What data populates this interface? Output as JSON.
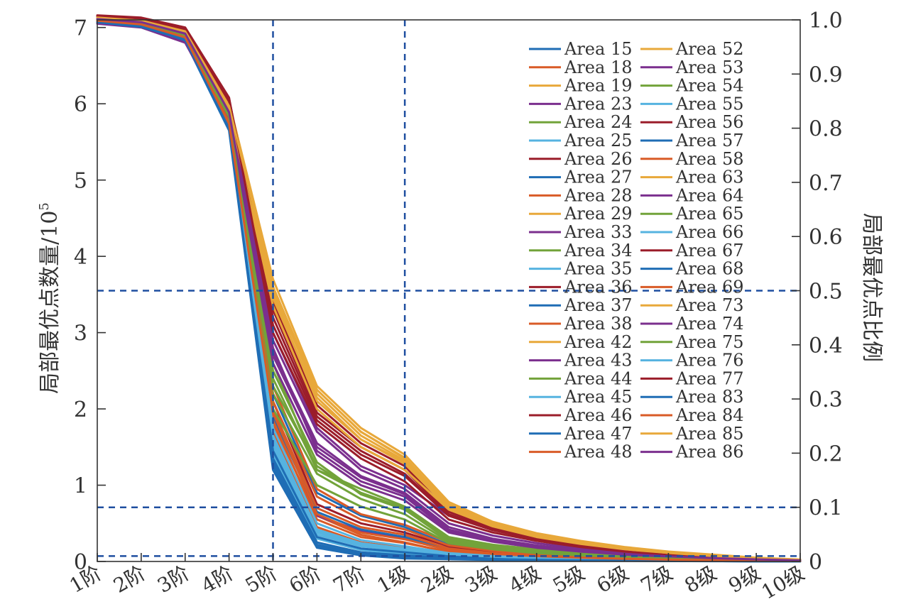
{
  "chart_data": {
    "type": "line",
    "title": "",
    "xlabel": "",
    "ylabel": "局部最优点数量/10",
    "ylabel_superscript": "5",
    "y2label": "局部最优点比例",
    "categories": [
      "1阶",
      "2阶",
      "3阶",
      "4阶",
      "5阶",
      "6阶",
      "7阶",
      "1级",
      "2级",
      "3级",
      "4级",
      "5级",
      "6级",
      "7级",
      "8级",
      "9级",
      "10级"
    ],
    "ylim": [
      0,
      7.1
    ],
    "yticks": [
      0,
      1,
      2,
      3,
      4,
      5,
      6,
      7
    ],
    "y2lim": [
      0,
      1.0
    ],
    "y2ticks": [
      "0",
      "0.1",
      "0.2",
      "0.3",
      "0.4",
      "0.5",
      "0.6",
      "0.7",
      "0.8",
      "0.9",
      "1.0"
    ],
    "grid": false,
    "legend_position": "top-right",
    "reference_lines": {
      "vertical_categories": [
        "5阶",
        "1级"
      ],
      "horizontal_right_axis": [
        0.01,
        0.1,
        0.5
      ]
    },
    "series_colors": [
      "#1f6db5",
      "#d95b27",
      "#e8a83a",
      "#7b2f8e",
      "#72a33a",
      "#56b3e0",
      "#9b1d2a"
    ],
    "series": [
      {
        "name": "Area 15",
        "values": [
          7.1,
          7.05,
          6.82,
          5.65,
          1.2,
          0.18,
          0.08,
          0.04,
          0.03,
          0.02,
          0.015,
          0.01,
          0.008,
          0.006,
          0.004,
          0.003,
          0.002
        ]
      },
      {
        "name": "Area 18",
        "values": [
          7.08,
          7.02,
          6.86,
          5.7,
          1.8,
          0.6,
          0.35,
          0.25,
          0.12,
          0.08,
          0.06,
          0.04,
          0.03,
          0.02,
          0.015,
          0.01,
          0.005
        ]
      },
      {
        "name": "Area 19",
        "values": [
          7.1,
          7.06,
          6.9,
          5.8,
          3.6,
          2.25,
          1.7,
          1.35,
          0.75,
          0.5,
          0.35,
          0.25,
          0.17,
          0.11,
          0.07,
          0.04,
          0.02
        ]
      },
      {
        "name": "Area 23",
        "values": [
          7.05,
          7.0,
          6.8,
          5.75,
          2.0,
          0.6,
          0.4,
          0.3,
          0.18,
          0.12,
          0.09,
          0.06,
          0.04,
          0.03,
          0.02,
          0.01,
          0.005
        ]
      },
      {
        "name": "Area 24",
        "values": [
          7.12,
          7.07,
          6.92,
          5.85,
          2.6,
          1.2,
          0.9,
          0.7,
          0.3,
          0.2,
          0.14,
          0.1,
          0.07,
          0.05,
          0.03,
          0.02,
          0.01
        ]
      },
      {
        "name": "Area 25",
        "values": [
          7.09,
          7.03,
          6.88,
          5.7,
          1.4,
          0.3,
          0.15,
          0.1,
          0.06,
          0.04,
          0.03,
          0.02,
          0.015,
          0.01,
          0.007,
          0.004,
          0.002
        ]
      },
      {
        "name": "Area 26",
        "values": [
          7.13,
          7.1,
          6.95,
          6.0,
          3.4,
          2.05,
          1.55,
          1.25,
          0.65,
          0.45,
          0.32,
          0.23,
          0.15,
          0.1,
          0.06,
          0.04,
          0.02
        ]
      },
      {
        "name": "Area 27",
        "values": [
          7.07,
          7.01,
          6.84,
          5.68,
          2.2,
          0.9,
          0.6,
          0.45,
          0.22,
          0.14,
          0.1,
          0.07,
          0.05,
          0.035,
          0.025,
          0.015,
          0.008
        ]
      },
      {
        "name": "Area 28",
        "values": [
          7.1,
          7.05,
          6.87,
          5.72,
          1.7,
          0.45,
          0.25,
          0.18,
          0.1,
          0.07,
          0.05,
          0.035,
          0.025,
          0.018,
          0.012,
          0.008,
          0.004
        ]
      },
      {
        "name": "Area 29",
        "values": [
          7.14,
          7.1,
          6.97,
          6.02,
          3.7,
          2.3,
          1.75,
          1.4,
          0.78,
          0.52,
          0.37,
          0.27,
          0.19,
          0.13,
          0.09,
          0.05,
          0.025
        ]
      },
      {
        "name": "Area 33",
        "values": [
          7.11,
          7.06,
          6.9,
          5.9,
          3.0,
          1.75,
          1.25,
          1.0,
          0.6,
          0.42,
          0.3,
          0.21,
          0.14,
          0.09,
          0.06,
          0.04,
          0.02
        ]
      },
      {
        "name": "Area 34",
        "values": [
          7.1,
          7.05,
          6.89,
          5.85,
          2.4,
          1.2,
          0.95,
          0.72,
          0.32,
          0.22,
          0.16,
          0.11,
          0.08,
          0.05,
          0.035,
          0.02,
          0.01
        ]
      },
      {
        "name": "Area 35",
        "values": [
          7.08,
          7.03,
          6.85,
          5.7,
          1.5,
          0.35,
          0.2,
          0.14,
          0.08,
          0.05,
          0.04,
          0.03,
          0.02,
          0.014,
          0.009,
          0.005,
          0.003
        ]
      },
      {
        "name": "Area 36",
        "values": [
          7.12,
          7.08,
          6.93,
          5.9,
          2.1,
          0.75,
          0.5,
          0.38,
          0.2,
          0.13,
          0.09,
          0.06,
          0.045,
          0.03,
          0.02,
          0.012,
          0.006
        ]
      },
      {
        "name": "Area 37",
        "values": [
          7.09,
          7.04,
          6.87,
          5.75,
          1.9,
          0.65,
          0.42,
          0.32,
          0.16,
          0.1,
          0.07,
          0.05,
          0.035,
          0.025,
          0.016,
          0.01,
          0.005
        ]
      },
      {
        "name": "Area 38",
        "values": [
          7.1,
          7.05,
          6.88,
          5.78,
          2.3,
          0.95,
          0.62,
          0.48,
          0.25,
          0.16,
          0.11,
          0.08,
          0.055,
          0.04,
          0.025,
          0.015,
          0.008
        ]
      },
      {
        "name": "Area 42",
        "values": [
          7.13,
          7.09,
          6.95,
          5.98,
          3.55,
          2.2,
          1.65,
          1.32,
          0.72,
          0.48,
          0.34,
          0.24,
          0.16,
          0.11,
          0.07,
          0.045,
          0.022
        ]
      },
      {
        "name": "Area 43",
        "values": [
          7.1,
          7.06,
          6.91,
          5.88,
          2.8,
          1.45,
          1.05,
          0.85,
          0.4,
          0.27,
          0.19,
          0.13,
          0.09,
          0.06,
          0.04,
          0.025,
          0.012
        ]
      },
      {
        "name": "Area 44",
        "values": [
          7.11,
          7.07,
          6.92,
          5.86,
          2.5,
          1.3,
          0.88,
          0.68,
          0.28,
          0.18,
          0.13,
          0.09,
          0.06,
          0.04,
          0.028,
          0.017,
          0.008
        ]
      },
      {
        "name": "Area 45",
        "values": [
          7.09,
          7.04,
          6.86,
          5.72,
          1.6,
          0.4,
          0.22,
          0.16,
          0.09,
          0.06,
          0.045,
          0.03,
          0.022,
          0.015,
          0.01,
          0.006,
          0.003
        ]
      },
      {
        "name": "Area 46",
        "values": [
          7.15,
          7.12,
          6.98,
          6.05,
          3.3,
          1.95,
          1.5,
          1.2,
          0.62,
          0.43,
          0.31,
          0.22,
          0.15,
          0.1,
          0.065,
          0.04,
          0.02
        ]
      },
      {
        "name": "Area 47",
        "values": [
          7.07,
          7.02,
          6.84,
          5.68,
          1.35,
          0.25,
          0.12,
          0.08,
          0.05,
          0.035,
          0.025,
          0.018,
          0.013,
          0.009,
          0.006,
          0.004,
          0.002
        ]
      },
      {
        "name": "Area 48",
        "values": [
          7.1,
          7.05,
          6.87,
          5.74,
          2.0,
          0.7,
          0.45,
          0.35,
          0.17,
          0.11,
          0.08,
          0.055,
          0.04,
          0.028,
          0.018,
          0.011,
          0.006
        ]
      },
      {
        "name": "Area 52",
        "values": [
          7.12,
          7.08,
          6.93,
          5.95,
          3.45,
          2.15,
          1.6,
          1.28,
          0.7,
          0.47,
          0.33,
          0.24,
          0.16,
          0.11,
          0.07,
          0.045,
          0.022
        ]
      },
      {
        "name": "Area 53",
        "values": [
          7.09,
          7.05,
          6.88,
          5.8,
          2.7,
          1.5,
          1.1,
          0.88,
          0.42,
          0.28,
          0.2,
          0.14,
          0.1,
          0.065,
          0.045,
          0.028,
          0.014
        ]
      },
      {
        "name": "Area 54",
        "values": [
          7.1,
          7.06,
          6.9,
          5.84,
          2.2,
          1.15,
          0.82,
          0.62,
          0.26,
          0.17,
          0.12,
          0.085,
          0.06,
          0.04,
          0.027,
          0.017,
          0.008
        ]
      },
      {
        "name": "Area 55",
        "values": [
          7.08,
          7.03,
          6.86,
          5.71,
          1.55,
          0.38,
          0.21,
          0.15,
          0.085,
          0.055,
          0.04,
          0.028,
          0.02,
          0.014,
          0.009,
          0.005,
          0.003
        ]
      },
      {
        "name": "Area 56",
        "values": [
          7.14,
          7.11,
          6.97,
          6.03,
          3.1,
          1.85,
          1.4,
          1.12,
          0.6,
          0.41,
          0.29,
          0.2,
          0.14,
          0.09,
          0.06,
          0.038,
          0.018
        ]
      },
      {
        "name": "Area 57",
        "values": [
          7.07,
          7.02,
          6.85,
          5.69,
          1.45,
          0.32,
          0.17,
          0.12,
          0.07,
          0.045,
          0.033,
          0.023,
          0.017,
          0.012,
          0.008,
          0.005,
          0.002
        ]
      },
      {
        "name": "Area 58",
        "values": [
          7.1,
          7.05,
          6.88,
          5.76,
          2.1,
          0.85,
          0.55,
          0.42,
          0.21,
          0.14,
          0.1,
          0.07,
          0.05,
          0.034,
          0.022,
          0.013,
          0.007
        ]
      },
      {
        "name": "Area 63",
        "values": [
          7.13,
          7.09,
          6.94,
          5.96,
          3.5,
          2.1,
          1.6,
          1.3,
          0.7,
          0.47,
          0.33,
          0.24,
          0.16,
          0.105,
          0.07,
          0.043,
          0.021
        ]
      },
      {
        "name": "Area 64",
        "values": [
          7.11,
          7.07,
          6.91,
          5.87,
          2.9,
          1.7,
          1.2,
          0.95,
          0.5,
          0.34,
          0.24,
          0.17,
          0.12,
          0.08,
          0.052,
          0.032,
          0.016
        ]
      },
      {
        "name": "Area 65",
        "values": [
          7.1,
          7.06,
          6.9,
          5.86,
          2.3,
          1.25,
          0.9,
          0.7,
          0.3,
          0.2,
          0.14,
          0.1,
          0.07,
          0.047,
          0.031,
          0.019,
          0.009
        ]
      },
      {
        "name": "Area 66",
        "values": [
          7.08,
          7.03,
          6.86,
          5.72,
          1.65,
          0.42,
          0.24,
          0.17,
          0.095,
          0.062,
          0.045,
          0.032,
          0.023,
          0.016,
          0.011,
          0.006,
          0.003
        ]
      },
      {
        "name": "Area 67",
        "values": [
          7.15,
          7.12,
          6.99,
          6.07,
          3.2,
          1.9,
          1.45,
          1.15,
          0.6,
          0.42,
          0.3,
          0.21,
          0.145,
          0.095,
          0.062,
          0.039,
          0.019
        ]
      },
      {
        "name": "Area 68",
        "values": [
          7.07,
          7.01,
          6.84,
          5.67,
          1.3,
          0.22,
          0.1,
          0.07,
          0.045,
          0.03,
          0.022,
          0.016,
          0.011,
          0.008,
          0.005,
          0.003,
          0.002
        ]
      },
      {
        "name": "Area 69",
        "values": [
          7.1,
          7.05,
          6.87,
          5.75,
          1.85,
          0.55,
          0.32,
          0.24,
          0.13,
          0.085,
          0.06,
          0.043,
          0.03,
          0.021,
          0.014,
          0.008,
          0.004
        ]
      },
      {
        "name": "Area 73",
        "values": [
          7.12,
          7.08,
          6.93,
          5.93,
          3.35,
          2.0,
          1.5,
          1.2,
          0.68,
          0.46,
          0.32,
          0.23,
          0.16,
          0.105,
          0.068,
          0.042,
          0.021
        ]
      },
      {
        "name": "Area 74",
        "values": [
          7.1,
          7.06,
          6.9,
          5.85,
          2.6,
          1.4,
          1.0,
          0.8,
          0.38,
          0.26,
          0.18,
          0.13,
          0.09,
          0.06,
          0.04,
          0.025,
          0.012
        ]
      },
      {
        "name": "Area 75",
        "values": [
          7.1,
          7.05,
          6.89,
          5.83,
          2.0,
          1.0,
          0.72,
          0.55,
          0.24,
          0.16,
          0.11,
          0.08,
          0.056,
          0.038,
          0.025,
          0.015,
          0.007
        ]
      },
      {
        "name": "Area 76",
        "values": [
          7.08,
          7.03,
          6.86,
          5.71,
          1.75,
          0.5,
          0.28,
          0.2,
          0.11,
          0.072,
          0.052,
          0.037,
          0.026,
          0.018,
          0.012,
          0.007,
          0.003
        ]
      },
      {
        "name": "Area 77",
        "values": [
          7.16,
          7.13,
          7.0,
          6.08,
          3.0,
          1.8,
          1.35,
          1.05,
          0.55,
          0.38,
          0.27,
          0.19,
          0.13,
          0.085,
          0.056,
          0.035,
          0.017
        ]
      },
      {
        "name": "Area 83",
        "values": [
          7.07,
          7.02,
          6.85,
          5.68,
          1.25,
          0.2,
          0.09,
          0.06,
          0.04,
          0.027,
          0.02,
          0.014,
          0.01,
          0.007,
          0.005,
          0.003,
          0.001
        ]
      },
      {
        "name": "Area 84",
        "values": [
          7.09,
          7.04,
          6.87,
          5.74,
          1.95,
          0.62,
          0.38,
          0.29,
          0.15,
          0.1,
          0.07,
          0.05,
          0.035,
          0.024,
          0.016,
          0.01,
          0.005
        ]
      },
      {
        "name": "Area 85",
        "values": [
          7.13,
          7.09,
          6.95,
          5.97,
          3.6,
          2.25,
          1.7,
          1.36,
          0.74,
          0.5,
          0.35,
          0.25,
          0.17,
          0.112,
          0.073,
          0.045,
          0.022
        ]
      },
      {
        "name": "Area 86",
        "values": [
          7.11,
          7.07,
          6.92,
          5.89,
          2.75,
          1.55,
          1.12,
          0.9,
          0.45,
          0.3,
          0.21,
          0.15,
          0.1,
          0.068,
          0.045,
          0.028,
          0.014
        ]
      }
    ]
  }
}
